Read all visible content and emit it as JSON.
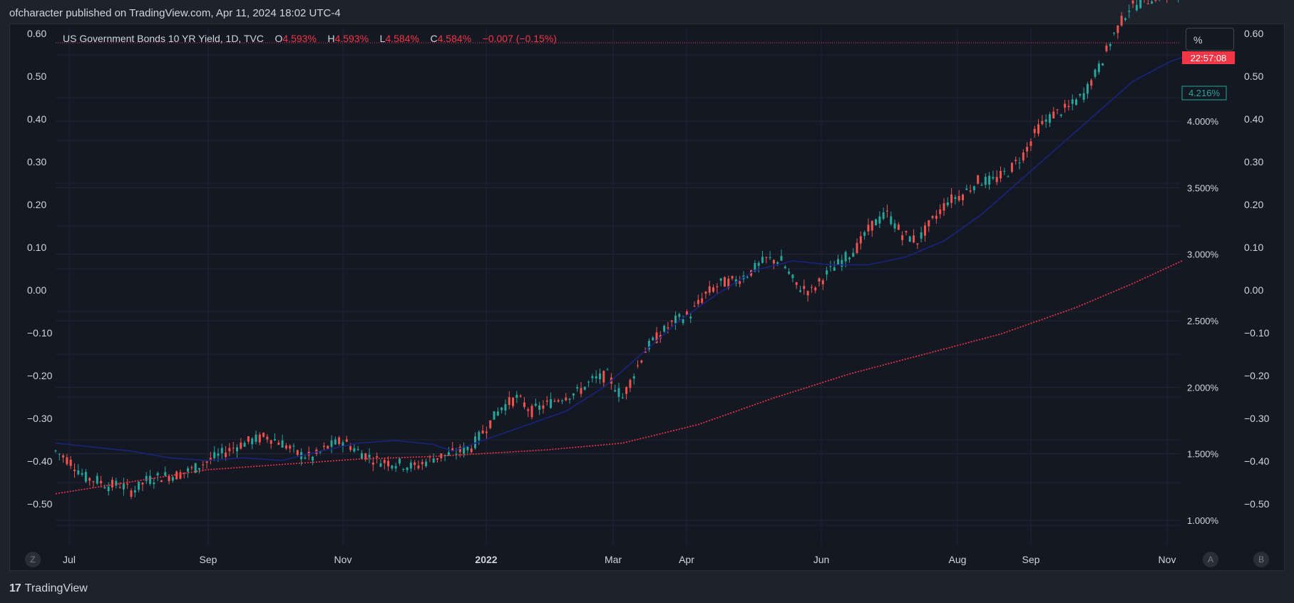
{
  "header": {
    "published": "ofcharacter published on TradingView.com, Apr 11, 2024 18:02 UTC-4"
  },
  "footer": {
    "brand": "TradingView",
    "logo_glyph": "17"
  },
  "legend": {
    "symbol": "US Government Bonds 10 YR Yield, 1D, TVC",
    "o_label": "O",
    "o_value": "4.593%",
    "h_label": "H",
    "h_value": "4.593%",
    "l_label": "L",
    "l_value": "4.584%",
    "c_label": "C",
    "c_value": "4.584%",
    "change": "−0.007 (−0.15%)"
  },
  "toolbar": {
    "unit_label": "%",
    "zoom_button": "Z",
    "auto_button": "A",
    "log_button": "B"
  },
  "price_badges": {
    "countdown": "22:57:08",
    "ma_value": "4.216%"
  },
  "colors": {
    "up": "#26a69a",
    "down": "#ef5350",
    "ma_fast": "#1a237e",
    "ma_slow": "#f23645",
    "background": "#141823"
  },
  "chart_data": {
    "type": "candlestick",
    "x_ticks": [
      "Jul",
      "Sep",
      "Nov",
      "2022",
      "Mar",
      "Apr",
      "Jun",
      "Aug",
      "Sep",
      "Nov"
    ],
    "y_left_ticks": [
      "0.60",
      "0.50",
      "0.40",
      "0.30",
      "0.20",
      "0.10",
      "0.00",
      "−0.10",
      "−0.20",
      "−0.30",
      "−0.40",
      "−0.50"
    ],
    "y_right_ticks": [
      "0.60",
      "0.50",
      "0.40",
      "0.30",
      "0.20",
      "0.10",
      "0.00",
      "−0.10",
      "−0.20",
      "−0.30",
      "−0.40",
      "−0.50"
    ],
    "y_right_price_ticks": [
      "4.000%",
      "3.500%",
      "3.000%",
      "2.500%",
      "2.000%",
      "1.500%",
      "1.000%"
    ],
    "price_range": [
      0.8,
      4.9
    ],
    "close_path": [
      [
        0,
        1.52
      ],
      [
        4,
        1.44
      ],
      [
        8,
        1.32
      ],
      [
        11,
        1.3
      ],
      [
        14,
        1.26
      ],
      [
        17,
        1.27
      ],
      [
        20,
        1.22
      ],
      [
        22,
        1.25
      ],
      [
        24,
        1.3
      ],
      [
        28,
        1.33
      ],
      [
        32,
        1.34
      ],
      [
        36,
        1.38
      ],
      [
        40,
        1.44
      ],
      [
        44,
        1.5
      ],
      [
        48,
        1.56
      ],
      [
        52,
        1.6
      ],
      [
        56,
        1.63
      ],
      [
        60,
        1.58
      ],
      [
        64,
        1.5
      ],
      [
        68,
        1.47
      ],
      [
        72,
        1.55
      ],
      [
        76,
        1.6
      ],
      [
        80,
        1.52
      ],
      [
        85,
        1.45
      ],
      [
        90,
        1.43
      ],
      [
        95,
        1.4
      ],
      [
        100,
        1.47
      ],
      [
        105,
        1.5
      ],
      [
        110,
        1.55
      ],
      [
        114,
        1.7
      ],
      [
        118,
        1.85
      ],
      [
        122,
        1.92
      ],
      [
        126,
        1.82
      ],
      [
        130,
        1.87
      ],
      [
        134,
        1.93
      ],
      [
        138,
        1.96
      ],
      [
        142,
        2.05
      ],
      [
        146,
        2.09
      ],
      [
        150,
        1.92
      ],
      [
        156,
        2.28
      ],
      [
        160,
        2.4
      ],
      [
        164,
        2.5
      ],
      [
        168,
        2.55
      ],
      [
        172,
        2.7
      ],
      [
        176,
        2.78
      ],
      [
        180,
        2.8
      ],
      [
        184,
        2.87
      ],
      [
        188,
        2.96
      ],
      [
        192,
        2.95
      ],
      [
        196,
        2.76
      ],
      [
        200,
        2.72
      ],
      [
        204,
        2.85
      ],
      [
        208,
        2.95
      ],
      [
        212,
        3.05
      ],
      [
        216,
        3.22
      ],
      [
        220,
        3.3
      ],
      [
        224,
        3.15
      ],
      [
        228,
        3.1
      ],
      [
        232,
        3.25
      ],
      [
        236,
        3.4
      ],
      [
        240,
        3.45
      ],
      [
        244,
        3.55
      ],
      [
        248,
        3.55
      ],
      [
        252,
        3.62
      ],
      [
        256,
        3.75
      ],
      [
        260,
        3.95
      ],
      [
        264,
        4.05
      ],
      [
        268,
        4.1
      ],
      [
        272,
        4.2
      ],
      [
        276,
        4.4
      ],
      [
        280,
        4.65
      ],
      [
        284,
        4.85
      ],
      [
        288,
        4.9
      ],
      [
        292,
        4.95
      ],
      [
        296,
        4.93
      ],
      [
        298,
        4.95
      ]
    ],
    "ma_fast_path": [
      [
        0,
        1.58
      ],
      [
        20,
        1.52
      ],
      [
        30,
        1.47
      ],
      [
        40,
        1.45
      ],
      [
        50,
        1.47
      ],
      [
        60,
        1.45
      ],
      [
        70,
        1.52
      ],
      [
        80,
        1.58
      ],
      [
        90,
        1.6
      ],
      [
        100,
        1.57
      ],
      [
        105,
        1.52
      ],
      [
        115,
        1.62
      ],
      [
        125,
        1.72
      ],
      [
        135,
        1.82
      ],
      [
        145,
        2.0
      ],
      [
        155,
        2.25
      ],
      [
        165,
        2.5
      ],
      [
        175,
        2.7
      ],
      [
        185,
        2.88
      ],
      [
        195,
        2.95
      ],
      [
        205,
        2.92
      ],
      [
        215,
        2.92
      ],
      [
        225,
        2.98
      ],
      [
        235,
        3.1
      ],
      [
        245,
        3.3
      ],
      [
        255,
        3.55
      ],
      [
        265,
        3.8
      ],
      [
        275,
        4.05
      ],
      [
        285,
        4.3
      ],
      [
        295,
        4.45
      ],
      [
        298,
        4.48
      ]
    ],
    "ma_slow_path": [
      [
        0,
        1.2
      ],
      [
        40,
        1.38
      ],
      [
        80,
        1.46
      ],
      [
        100,
        1.48
      ],
      [
        130,
        1.53
      ],
      [
        150,
        1.58
      ],
      [
        170,
        1.72
      ],
      [
        190,
        1.92
      ],
      [
        210,
        2.1
      ],
      [
        230,
        2.25
      ],
      [
        250,
        2.4
      ],
      [
        270,
        2.6
      ],
      [
        285,
        2.78
      ],
      [
        298,
        2.95
      ]
    ]
  }
}
